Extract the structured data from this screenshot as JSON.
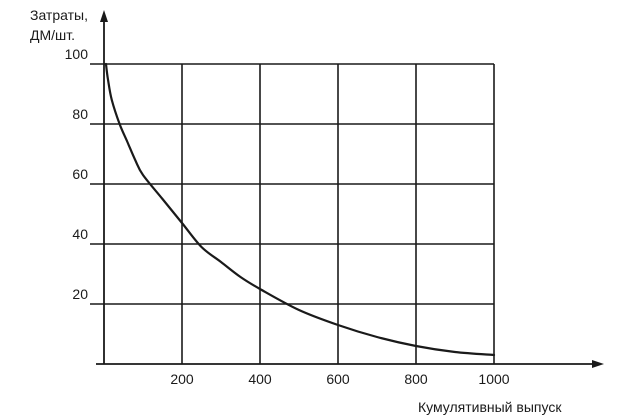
{
  "chart_data": {
    "type": "line",
    "ylabel_lines": [
      "Затраты,",
      "ДМ/шт."
    ],
    "xlabel": "Кумулятивный выпуск",
    "xlim": [
      0,
      1000
    ],
    "ylim": [
      0,
      100
    ],
    "x_ticks": [
      "200",
      "400",
      "600",
      "800",
      "1000"
    ],
    "y_ticks": [
      "20",
      "40",
      "60",
      "80",
      "100"
    ],
    "grid": true,
    "series": [
      {
        "x": [
          5,
          10,
          20,
          40,
          60,
          80,
          100,
          150,
          200,
          250,
          300,
          350,
          400,
          500,
          600,
          700,
          800,
          900,
          1000
        ],
        "y": [
          100,
          95,
          88,
          80,
          74,
          68,
          63,
          55,
          47,
          39,
          34,
          29,
          25,
          18,
          13,
          9,
          6,
          4,
          3
        ]
      }
    ],
    "colors": {
      "line": "#1a1a1a",
      "grid": "#1a1a1a"
    }
  }
}
